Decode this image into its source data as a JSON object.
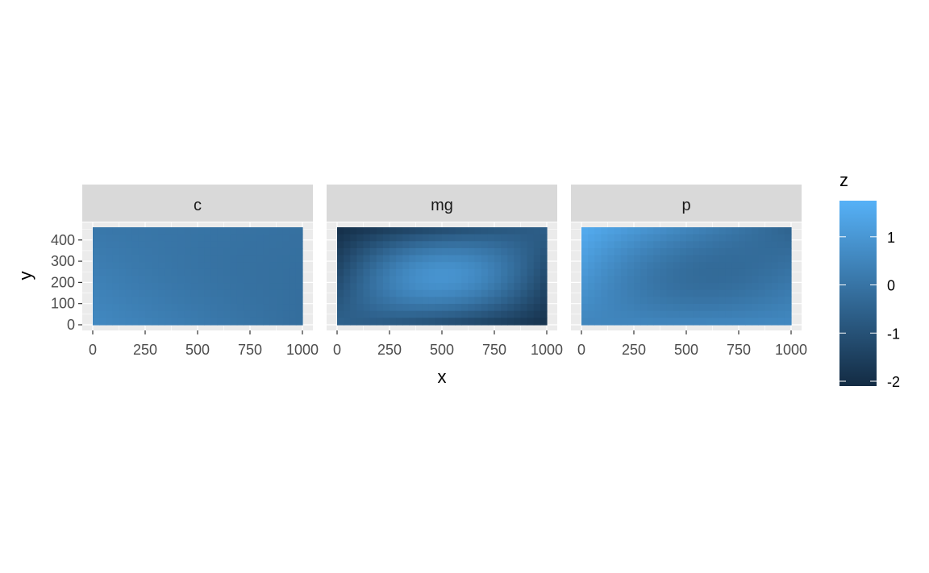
{
  "chart_data": {
    "type": "heatmap",
    "facets": [
      {
        "label": "c",
        "corners": {
          "top_left": 0.1,
          "top_right": -0.1,
          "bottom_left": 0.6,
          "bottom_right": -0.2
        },
        "center": 0.0
      },
      {
        "label": "mg",
        "corners": {
          "top_left": -2.0,
          "top_right": -0.6,
          "bottom_left": -0.5,
          "bottom_right": -1.9
        },
        "center": 0.9
      },
      {
        "label": "p",
        "corners": {
          "top_left": 1.6,
          "top_right": -0.5,
          "bottom_left": 0.5,
          "bottom_right": 0.6
        },
        "center": -0.2
      }
    ],
    "xlabel": "x",
    "ylabel": "y",
    "xlim": [
      0,
      1000
    ],
    "ylim": [
      0,
      460
    ],
    "xticks": [
      0,
      250,
      500,
      750,
      1000
    ],
    "xtick_labels": [
      "0",
      "250",
      "500",
      "750",
      "1000"
    ],
    "yticks": [
      0,
      100,
      200,
      300,
      400
    ],
    "ytick_labels": [
      "0",
      "100",
      "200",
      "300",
      "400"
    ],
    "legend": {
      "title": "z",
      "position": "right",
      "zlim": [
        -2.1,
        1.75
      ],
      "ticks": [
        1,
        0,
        -1,
        -2
      ],
      "tick_labels": [
        "1",
        "0",
        "-1",
        "-2"
      ],
      "color_low": "#132B43",
      "color_high": "#56B1F7"
    },
    "panel_background": "#EBEBEB",
    "strip_background": "#D9D9D9",
    "grid": true
  }
}
